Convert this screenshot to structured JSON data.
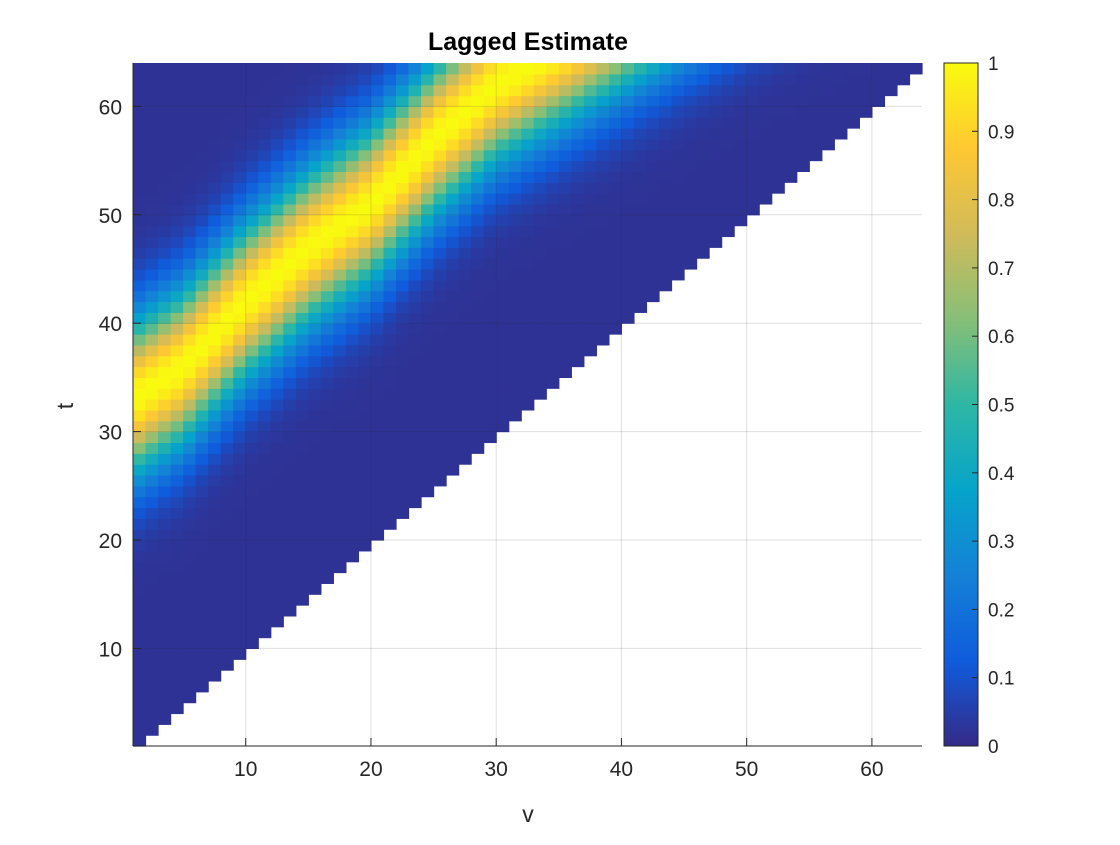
{
  "chart_data": {
    "type": "heatmap",
    "title": "Lagged Estimate",
    "xlabel": "v",
    "ylabel": "t",
    "xlim": [
      1,
      64
    ],
    "ylim": [
      1,
      64
    ],
    "x_ticks": [
      10,
      20,
      30,
      40,
      50,
      60
    ],
    "y_ticks": [
      10,
      20,
      30,
      40,
      50,
      60
    ],
    "grid": true,
    "mask": "cells shown only where t > v (upper-left triangle); lower-right region blank",
    "ridge": {
      "description": "band of maximum value running diagonally",
      "points": [
        {
          "v": 1,
          "t": 33
        },
        {
          "v": 5,
          "t": 36
        },
        {
          "v": 10,
          "t": 42
        },
        {
          "v": 15,
          "t": 47
        },
        {
          "v": 20,
          "t": 51
        },
        {
          "v": 25,
          "t": 57
        },
        {
          "v": 30,
          "t": 62
        },
        {
          "v": 33,
          "t": 64
        }
      ],
      "peak_value": 1.0,
      "approx_halfwidth_in_t": 8
    },
    "background_value": 0.02,
    "colorbar": {
      "min": 0,
      "max": 1,
      "ticks": [
        "0",
        "0.1",
        "0.2",
        "0.3",
        "0.4",
        "0.5",
        "0.6",
        "0.7",
        "0.8",
        "0.9",
        "1"
      ],
      "colormap": "parula",
      "colors": [
        "#352a87",
        "#0f5cdd",
        "#1481d6",
        "#06a4ca",
        "#2eb7a4",
        "#87bf77",
        "#d1bb59",
        "#fec832",
        "#f9fb0e"
      ]
    }
  }
}
